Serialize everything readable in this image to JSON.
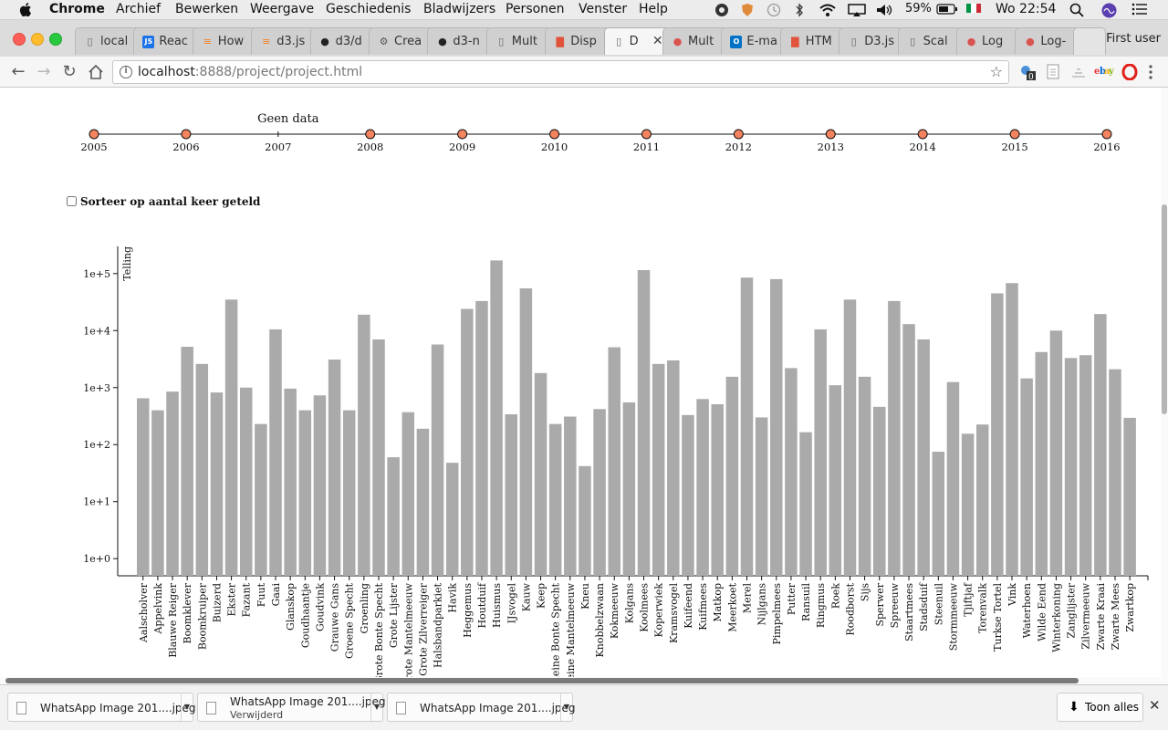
{
  "menubar": {
    "app": "Chrome",
    "items": [
      "Archief",
      "Bewerken",
      "Weergave",
      "Geschiedenis",
      "Bladwijzers",
      "Personen",
      "Venster",
      "Help"
    ],
    "battery": "59%",
    "clock": "Wo 22:54"
  },
  "tabs": [
    {
      "label": "local",
      "icon": "page-icon"
    },
    {
      "label": "Reac",
      "icon": "js-icon"
    },
    {
      "label": "How",
      "icon": "stack-icon"
    },
    {
      "label": "d3.js",
      "icon": "stack-icon"
    },
    {
      "label": "d3/d",
      "icon": "github-icon"
    },
    {
      "label": "Crea",
      "icon": "gear-icon"
    },
    {
      "label": "d3-n",
      "icon": "github-icon"
    },
    {
      "label": "Mult",
      "icon": "page-icon"
    },
    {
      "label": "Disp",
      "icon": "chart-icon"
    },
    {
      "label": "D",
      "icon": "page-icon",
      "active": true
    },
    {
      "label": "Mult",
      "icon": "globe-icon"
    },
    {
      "label": "E-ma",
      "icon": "outlook-icon"
    },
    {
      "label": "HTM",
      "icon": "chart-icon"
    },
    {
      "label": "D3.js",
      "icon": "page-icon"
    },
    {
      "label": "Scal",
      "icon": "page-icon"
    },
    {
      "label": "Log",
      "icon": "globe-icon"
    },
    {
      "label": "Log-",
      "icon": "globe-icon"
    }
  ],
  "user": "First user",
  "address": {
    "host": "localhost",
    "rest": ":8888/project/project.html"
  },
  "timeline": {
    "years": [
      "2005",
      "2006",
      "2007",
      "2008",
      "2009",
      "2010",
      "2011",
      "2012",
      "2013",
      "2014",
      "2015",
      "2016"
    ],
    "no_data_year": "2007",
    "no_data_label": "Geen data",
    "dot_color": "#f4845f"
  },
  "sort_label": "Sorteer op aantal keer geteld",
  "chart_data": {
    "type": "bar",
    "ylabel": "Telling",
    "xlabel": "",
    "yscale": "log",
    "ylim": [
      0.5,
      300000
    ],
    "yticks": [
      "1e+0",
      "1e+1",
      "1e+2",
      "1e+3",
      "1e+4",
      "1e+5"
    ],
    "bar_color": "#aaaaaa",
    "categories": [
      "Aalscholver",
      "Appelvink",
      "Blauwe Reiger",
      "Boomklever",
      "Boomkruiper",
      "Buizerd",
      "Ekster",
      "Fazant",
      "Fuut",
      "Gaai",
      "Glanskop",
      "Goudhaantje",
      "Goudvink",
      "Grauwe Gans",
      "Groene Specht",
      "Groenling",
      "Grote Bonte Specht",
      "Grote Lijster",
      "Grote Mantelmeeuw",
      "Grote Zilverreiger",
      "Halsbandparkiet",
      "Havik",
      "Heggemus",
      "Houtduif",
      "Huismus",
      "IJsvogel",
      "Kauw",
      "Keep",
      "Kleine Bonte Specht",
      "Kleine Mantelmeeuw",
      "Kneu",
      "Knobbelzwaan",
      "Kokmeeuw",
      "Kolgans",
      "Koolmees",
      "Koperwiek",
      "Kramsvogel",
      "Kuifeend",
      "Kuifmees",
      "Matkop",
      "Meerkoet",
      "Merel",
      "Nijlgans",
      "Pimpelmees",
      "Putter",
      "Ransuil",
      "Ringmus",
      "Roek",
      "Roodborst",
      "Sijs",
      "Sperwer",
      "Spreeuw",
      "Staartmees",
      "Stadsduif",
      "Steenuil",
      "Stormmeeuw",
      "Tjiftjaf",
      "Torenvalk",
      "Turkse Tortel",
      "Vink",
      "Waterhoen",
      "Wilde Eend",
      "Winterkoning",
      "Zanglijster",
      "Zilvermeeuw",
      "Zwarte Kraai",
      "Zwarte Mees",
      "Zwartkop"
    ],
    "values": [
      650,
      400,
      850,
      5200,
      2600,
      820,
      35000,
      1000,
      230,
      10500,
      960,
      400,
      730,
      3100,
      400,
      19000,
      7000,
      60,
      370,
      190,
      5700,
      48,
      24000,
      33000,
      170000,
      340,
      55000,
      1800,
      230,
      310,
      42,
      420,
      5100,
      550,
      115000,
      2600,
      3000,
      330,
      630,
      510,
      1550,
      85000,
      300,
      80000,
      2200,
      165,
      10500,
      1100,
      35000,
      1550,
      460,
      33000,
      13000,
      7000,
      75,
      1250,
      155,
      225,
      45000,
      68000,
      1450,
      4200,
      10000,
      3300,
      3700,
      19500,
      2100,
      295
    ]
  },
  "downloads": [
    {
      "name": "WhatsApp Image 201....jpeg",
      "status": ""
    },
    {
      "name": "WhatsApp Image 201....jpeg",
      "status": "Verwijderd"
    },
    {
      "name": "WhatsApp Image 201....jpeg",
      "status": ""
    }
  ],
  "show_all": "Toon alles"
}
